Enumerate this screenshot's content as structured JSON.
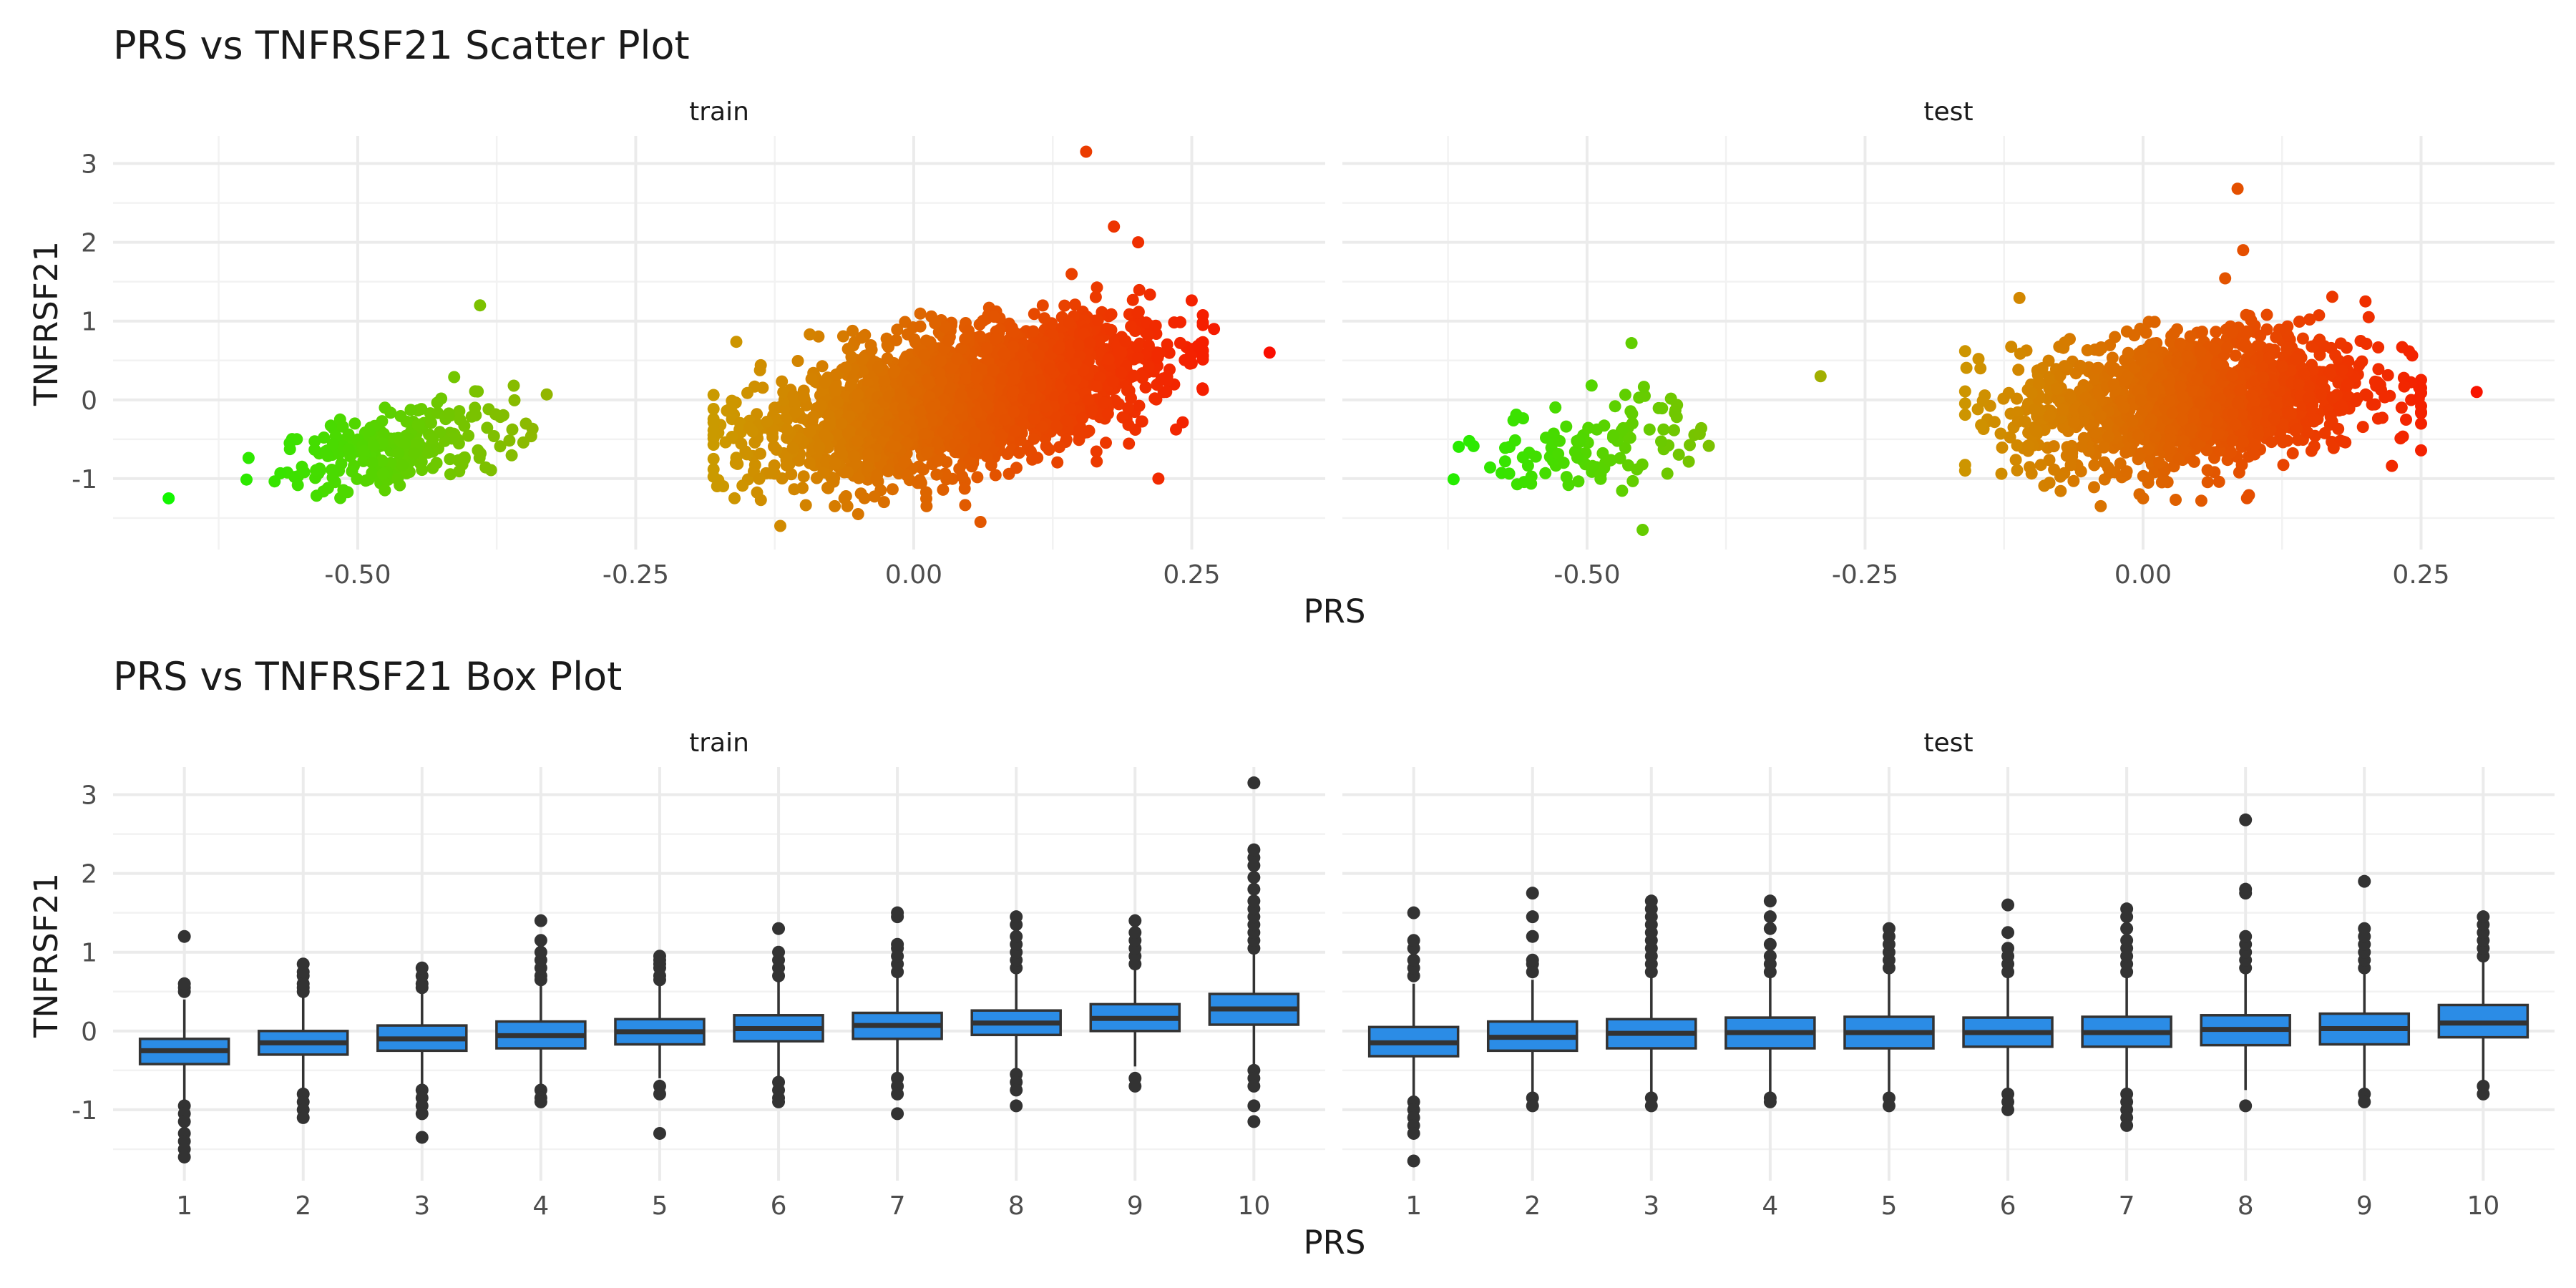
{
  "chart_data": [
    {
      "type": "scatter",
      "title": "PRS vs TNFRSF21 Scatter Plot",
      "xlabel": "PRS",
      "ylabel": "TNFRSF21",
      "xlim": [
        -0.72,
        0.37
      ],
      "ylim": [
        -1.9,
        3.35
      ],
      "xticks": [
        -0.5,
        -0.25,
        0.0,
        0.25
      ],
      "xtick_labels": [
        "-0.50",
        "-0.25",
        "0.00",
        "0.25"
      ],
      "yticks": [
        -1,
        0,
        1,
        2,
        3
      ],
      "ytick_labels": [
        "-1",
        "0",
        "1",
        "2",
        "3"
      ],
      "grid": true,
      "color_scale": {
        "low": "#00ff00",
        "mid": "#cc9900",
        "high": "#ff0000",
        "by": "PRS"
      },
      "facets": [
        {
          "label": "train",
          "clusters": [
            {
              "x_min": -0.6,
              "x_max": -0.33,
              "count": 240,
              "y_mean": -0.6,
              "slope": 2.8,
              "sd": 0.25
            },
            {
              "x_min": -0.18,
              "x_max": 0.26,
              "count": 2600,
              "y_mean": 0.0,
              "slope": 2.7,
              "sd": 0.4
            }
          ],
          "points": [
            {
              "x": -0.67,
              "y": -1.25
            },
            {
              "x": -0.39,
              "y": 1.2
            },
            {
              "x": 0.155,
              "y": 3.15
            },
            {
              "x": 0.32,
              "y": 0.6
            },
            {
              "x": 0.06,
              "y": -1.55
            },
            {
              "x": -0.12,
              "y": -1.6
            },
            {
              "x": 0.18,
              "y": 2.2
            },
            {
              "x": 0.27,
              "y": 0.9
            },
            {
              "x": 0.22,
              "y": -1.0
            },
            {
              "x": -0.05,
              "y": -1.45
            }
          ]
        },
        {
          "label": "test",
          "clusters": [
            {
              "x_min": -0.62,
              "x_max": -0.36,
              "count": 110,
              "y_mean": -0.55,
              "slope": 2.0,
              "sd": 0.3
            },
            {
              "x_min": -0.16,
              "x_max": 0.25,
              "count": 1500,
              "y_mean": 0.0,
              "slope": 1.3,
              "sd": 0.42
            }
          ],
          "points": [
            {
              "x": 0.3,
              "y": 0.1
            },
            {
              "x": 0.085,
              "y": 2.68
            },
            {
              "x": -0.29,
              "y": 0.3
            },
            {
              "x": -0.46,
              "y": 0.72
            },
            {
              "x": -0.45,
              "y": -1.65
            },
            {
              "x": 0.09,
              "y": 1.9
            },
            {
              "x": 0.0,
              "y": -1.25
            },
            {
              "x": 0.2,
              "y": 1.25
            }
          ]
        }
      ]
    },
    {
      "type": "box",
      "title": "PRS vs TNFRSF21 Box Plot",
      "xlabel": "PRS",
      "ylabel": "TNFRSF21",
      "ylim": [
        -1.9,
        3.35
      ],
      "categories": [
        "1",
        "2",
        "3",
        "4",
        "5",
        "6",
        "7",
        "8",
        "9",
        "10"
      ],
      "yticks": [
        -1,
        0,
        1,
        2,
        3
      ],
      "ytick_labels": [
        "-1",
        "0",
        "1",
        "2",
        "3"
      ],
      "grid": true,
      "box_color": "#2b8ce6",
      "facets": [
        {
          "label": "train",
          "boxes": [
            {
              "q1": -0.42,
              "median": -0.25,
              "q3": -0.1,
              "whisker_low": -0.9,
              "whisker_high": 0.4,
              "outliers": [
                0.5,
                0.55,
                0.6,
                1.2,
                -0.95,
                -1.05,
                -1.15,
                -1.3,
                -1.4,
                -1.5,
                -1.6
              ]
            },
            {
              "q1": -0.3,
              "median": -0.15,
              "q3": 0.0,
              "whisker_low": -0.75,
              "whisker_high": 0.45,
              "outliers": [
                0.5,
                0.55,
                0.6,
                0.7,
                0.75,
                0.85,
                -0.8,
                -0.9,
                -1.0,
                -1.1
              ]
            },
            {
              "q1": -0.25,
              "median": -0.1,
              "q3": 0.07,
              "whisker_low": -0.7,
              "whisker_high": 0.5,
              "outliers": [
                0.55,
                0.6,
                0.7,
                0.8,
                -0.75,
                -0.85,
                -0.95,
                -1.05,
                -1.35
              ]
            },
            {
              "q1": -0.22,
              "median": -0.06,
              "q3": 0.12,
              "whisker_low": -0.7,
              "whisker_high": 0.6,
              "outliers": [
                0.65,
                0.7,
                0.8,
                0.9,
                1.0,
                1.15,
                1.4,
                -0.75,
                -0.85,
                -0.9
              ]
            },
            {
              "q1": -0.17,
              "median": -0.01,
              "q3": 0.15,
              "whisker_low": -0.6,
              "whisker_high": 0.6,
              "outliers": [
                0.65,
                0.7,
                0.8,
                0.85,
                0.9,
                0.95,
                -0.7,
                -0.8,
                -1.3
              ]
            },
            {
              "q1": -0.13,
              "median": 0.03,
              "q3": 0.2,
              "whisker_low": -0.6,
              "whisker_high": 0.65,
              "outliers": [
                0.7,
                0.8,
                0.9,
                1.0,
                1.3,
                -0.65,
                -0.75,
                -0.85,
                -0.9
              ]
            },
            {
              "q1": -0.1,
              "median": 0.07,
              "q3": 0.23,
              "whisker_low": -0.55,
              "whisker_high": 0.7,
              "outliers": [
                0.75,
                0.85,
                0.95,
                1.05,
                1.1,
                1.45,
                1.5,
                -0.6,
                -0.7,
                -0.8,
                -1.05
              ]
            },
            {
              "q1": -0.05,
              "median": 0.1,
              "q3": 0.26,
              "whisker_low": -0.5,
              "whisker_high": 0.75,
              "outliers": [
                0.8,
                0.9,
                1.0,
                1.1,
                1.2,
                1.35,
                1.45,
                -0.55,
                -0.65,
                -0.75,
                -0.95
              ]
            },
            {
              "q1": 0.0,
              "median": 0.16,
              "q3": 0.34,
              "whisker_low": -0.45,
              "whisker_high": 0.8,
              "outliers": [
                0.85,
                0.95,
                1.05,
                1.15,
                1.25,
                1.4,
                -0.6,
                -0.7
              ]
            },
            {
              "q1": 0.08,
              "median": 0.28,
              "q3": 0.47,
              "whisker_low": -0.45,
              "whisker_high": 1.0,
              "outliers": [
                1.05,
                1.15,
                1.25,
                1.35,
                1.45,
                1.55,
                1.65,
                1.8,
                1.95,
                2.1,
                2.2,
                2.3,
                3.15,
                -0.5,
                -0.6,
                -0.7,
                -0.95,
                -1.15
              ]
            }
          ]
        },
        {
          "label": "test",
          "boxes": [
            {
              "q1": -0.32,
              "median": -0.15,
              "q3": 0.05,
              "whisker_low": -0.85,
              "whisker_high": 0.6,
              "outliers": [
                0.7,
                0.8,
                0.9,
                1.05,
                1.15,
                1.5,
                -0.9,
                -1.0,
                -1.1,
                -1.2,
                -1.3,
                -1.65
              ]
            },
            {
              "q1": -0.25,
              "median": -0.08,
              "q3": 0.12,
              "whisker_low": -0.8,
              "whisker_high": 0.65,
              "outliers": [
                0.75,
                0.85,
                0.9,
                1.2,
                1.45,
                1.75,
                -0.85,
                -0.95
              ]
            },
            {
              "q1": -0.22,
              "median": -0.03,
              "q3": 0.15,
              "whisker_low": -0.8,
              "whisker_high": 0.7,
              "outliers": [
                0.75,
                0.85,
                0.95,
                1.05,
                1.15,
                1.25,
                1.35,
                1.45,
                1.55,
                1.65,
                -0.85,
                -0.95
              ]
            },
            {
              "q1": -0.22,
              "median": -0.02,
              "q3": 0.17,
              "whisker_low": -0.8,
              "whisker_high": 0.7,
              "outliers": [
                0.75,
                0.85,
                0.95,
                1.1,
                1.3,
                1.45,
                1.65,
                -0.85,
                -0.9
              ]
            },
            {
              "q1": -0.22,
              "median": -0.02,
              "q3": 0.18,
              "whisker_low": -0.8,
              "whisker_high": 0.75,
              "outliers": [
                0.8,
                0.9,
                1.0,
                1.1,
                1.2,
                1.3,
                -0.85,
                -0.95
              ]
            },
            {
              "q1": -0.2,
              "median": -0.02,
              "q3": 0.17,
              "whisker_low": -0.75,
              "whisker_high": 0.7,
              "outliers": [
                0.75,
                0.85,
                0.95,
                1.05,
                1.25,
                1.6,
                -0.8,
                -0.9,
                -1.0
              ]
            },
            {
              "q1": -0.2,
              "median": -0.02,
              "q3": 0.18,
              "whisker_low": -0.75,
              "whisker_high": 0.7,
              "outliers": [
                0.75,
                0.85,
                0.95,
                1.05,
                1.15,
                1.3,
                1.45,
                1.55,
                -0.8,
                -0.9,
                -1.0,
                -1.1,
                -1.2
              ]
            },
            {
              "q1": -0.18,
              "median": 0.02,
              "q3": 0.2,
              "whisker_low": -0.75,
              "whisker_high": 0.75,
              "outliers": [
                0.8,
                0.9,
                1.0,
                1.1,
                1.2,
                1.75,
                1.8,
                2.68,
                -0.95
              ]
            },
            {
              "q1": -0.17,
              "median": 0.03,
              "q3": 0.22,
              "whisker_low": -0.75,
              "whisker_high": 0.75,
              "outliers": [
                0.8,
                0.9,
                1.0,
                1.1,
                1.2,
                1.3,
                1.9,
                -0.8,
                -0.9
              ]
            },
            {
              "q1": -0.08,
              "median": 0.1,
              "q3": 0.33,
              "whisker_low": -0.65,
              "whisker_high": 0.9,
              "outliers": [
                0.95,
                1.05,
                1.15,
                1.25,
                1.35,
                1.45,
                -0.7,
                -0.8
              ]
            }
          ]
        }
      ]
    }
  ]
}
